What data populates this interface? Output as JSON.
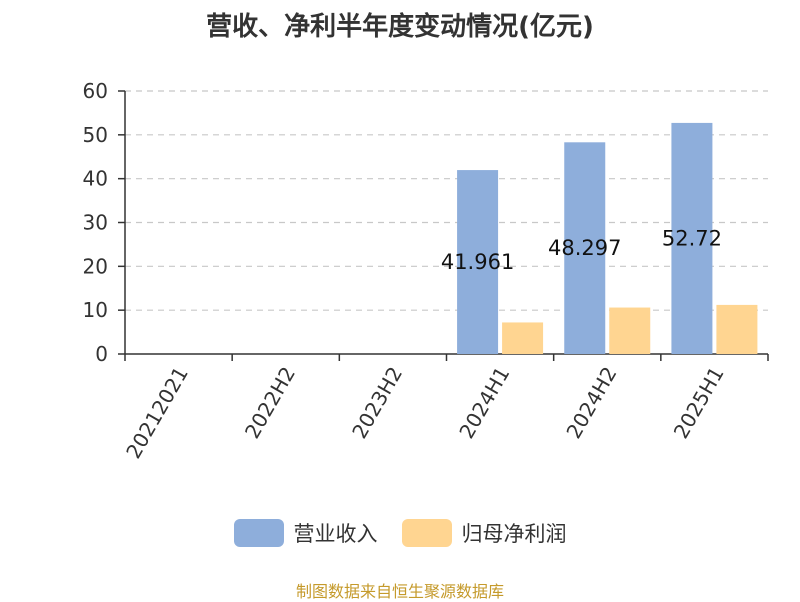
{
  "chart_data": {
    "type": "bar",
    "title": "营收、净利半年度变动情况(亿元)",
    "categories": [
      "20212021",
      "2022H2",
      "2023H2",
      "2024H1",
      "2024H2",
      "2025H1"
    ],
    "series": [
      {
        "name": "营业收入",
        "color": "#8eaedb",
        "values": [
          null,
          null,
          null,
          41.961,
          48.297,
          52.72
        ]
      },
      {
        "name": "归母净利润",
        "color": "#ffd591",
        "values": [
          null,
          null,
          null,
          7.2,
          10.6,
          11.2
        ]
      }
    ],
    "data_labels": [
      "",
      "",
      "",
      "41.961",
      "48.297",
      "52.72"
    ],
    "ylim": [
      0,
      60
    ],
    "yticks": [
      0,
      10,
      20,
      30,
      40,
      50,
      60
    ],
    "grid": true,
    "legend_position": "bottom"
  },
  "source": "制图数据来自恒生聚源数据库"
}
